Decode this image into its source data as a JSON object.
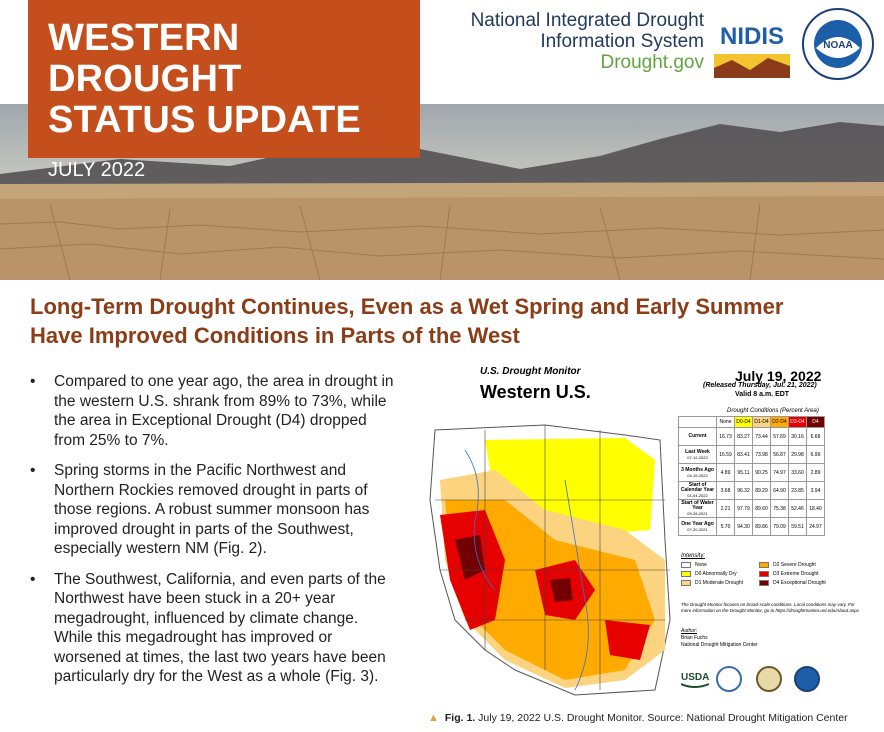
{
  "header": {
    "title_line1": "WESTERN DROUGHT",
    "title_line2": "STATUS UPDATE",
    "month": "JULY 2022",
    "org_line1": "National Integrated Drought",
    "org_line2": "Information System",
    "org_site": "Drought.gov",
    "nidis_logo_text": "NIDIS",
    "noaa_logo_text": "NOAA",
    "colors": {
      "title_bg": "#c44f1d",
      "org_text": "#213a5e",
      "site_text": "#60a53c"
    }
  },
  "headline": {
    "line1": "Long-Term Drought Continues, Even as a Wet Spring and Early Summer",
    "line2": "Have Improved Conditions in Parts of the West",
    "color": "#8a3d17"
  },
  "bullets": [
    "Compared to one year ago, the area in drought in the western U.S. shrank from 89% to 73%, while the area in Exceptional Drought (D4) dropped from 25% to 7%.",
    "Spring storms in the Pacific Northwest and Northern Rockies removed drought in parts of those regions. A robust summer monsoon has improved drought in parts of the Southwest, especially western NM (Fig. 2).",
    "The Southwest, California, and even parts of the Northwest have been stuck in a 20+ year megadrought, influenced by climate change. While this megadrought has improved or worsened at times, the last two years have been particularly dry for the West as a whole (Fig. 3)."
  ],
  "figure": {
    "map_subtitle": "U.S. Drought Monitor",
    "map_title": "Western U.S.",
    "date": "July 19, 2022",
    "released": "(Released Thursday, Jul. 21, 2022)",
    "valid": "Valid 8 a.m. EDT",
    "table_caption": "Drought Conditions (Percent Area)",
    "table_headers": [
      "None",
      "D0-D4",
      "D1-D4",
      "D2-D4",
      "D3-D4",
      "D4"
    ],
    "table_rows": [
      {
        "label": "Current",
        "sub": "",
        "values": [
          "16.73",
          "83.27",
          "73.44",
          "57.69",
          "30.16",
          "6.68"
        ]
      },
      {
        "label": "Last Week",
        "sub": "07-12-2022",
        "values": [
          "16.59",
          "83.41",
          "73.98",
          "56.87",
          "29.98",
          "6.99"
        ]
      },
      {
        "label": "3 Months Ago",
        "sub": "04-19-2022",
        "values": [
          "4.89",
          "95.11",
          "90.25",
          "74.97",
          "33.60",
          "2.89"
        ]
      },
      {
        "label": "Start of Calendar Year",
        "sub": "01-04-2022",
        "values": [
          "3.68",
          "96.32",
          "89.29",
          "64.90",
          "23.85",
          "3.94"
        ]
      },
      {
        "label": "Start of Water Year",
        "sub": "09-28-2021",
        "values": [
          "2.21",
          "97.79",
          "89.60",
          "75.38",
          "52.46",
          "18.40"
        ]
      },
      {
        "label": "One Year Ago",
        "sub": "07-20-2021",
        "values": [
          "5.70",
          "94.30",
          "89.86",
          "79.09",
          "59.51",
          "24.97"
        ]
      }
    ],
    "header_colors": [
      "#ffffff",
      "#ffff00",
      "#fcd37f",
      "#ffaa00",
      "#e60000",
      "#730000"
    ],
    "legend_title": "Intensity:",
    "legend": [
      {
        "label": "None",
        "color": "#ffffff"
      },
      {
        "label": "D2 Severe Drought",
        "color": "#ffaa00"
      },
      {
        "label": "D0 Abnormally Dry",
        "color": "#ffff00"
      },
      {
        "label": "D3 Extreme Drought",
        "color": "#e60000"
      },
      {
        "label": "D1 Moderate Drought",
        "color": "#fcd37f"
      },
      {
        "label": "D4 Exceptional Drought",
        "color": "#730000"
      }
    ],
    "note": "The Drought Monitor focuses on broad-scale conditions. Local conditions may vary. For more information on the Drought Monitor, go to https://droughtmonitor.unl.edu/About.aspx",
    "author_label": "Author:",
    "author_name": "Brian Fuchs",
    "author_org": "National Drought Mitigation Center",
    "logo_usda": "USDA",
    "caption_bold": "Fig. 1.",
    "caption_text": "July 19, 2022 U.S. Drought Monitor. Source: National Drought Mitigation Center"
  }
}
